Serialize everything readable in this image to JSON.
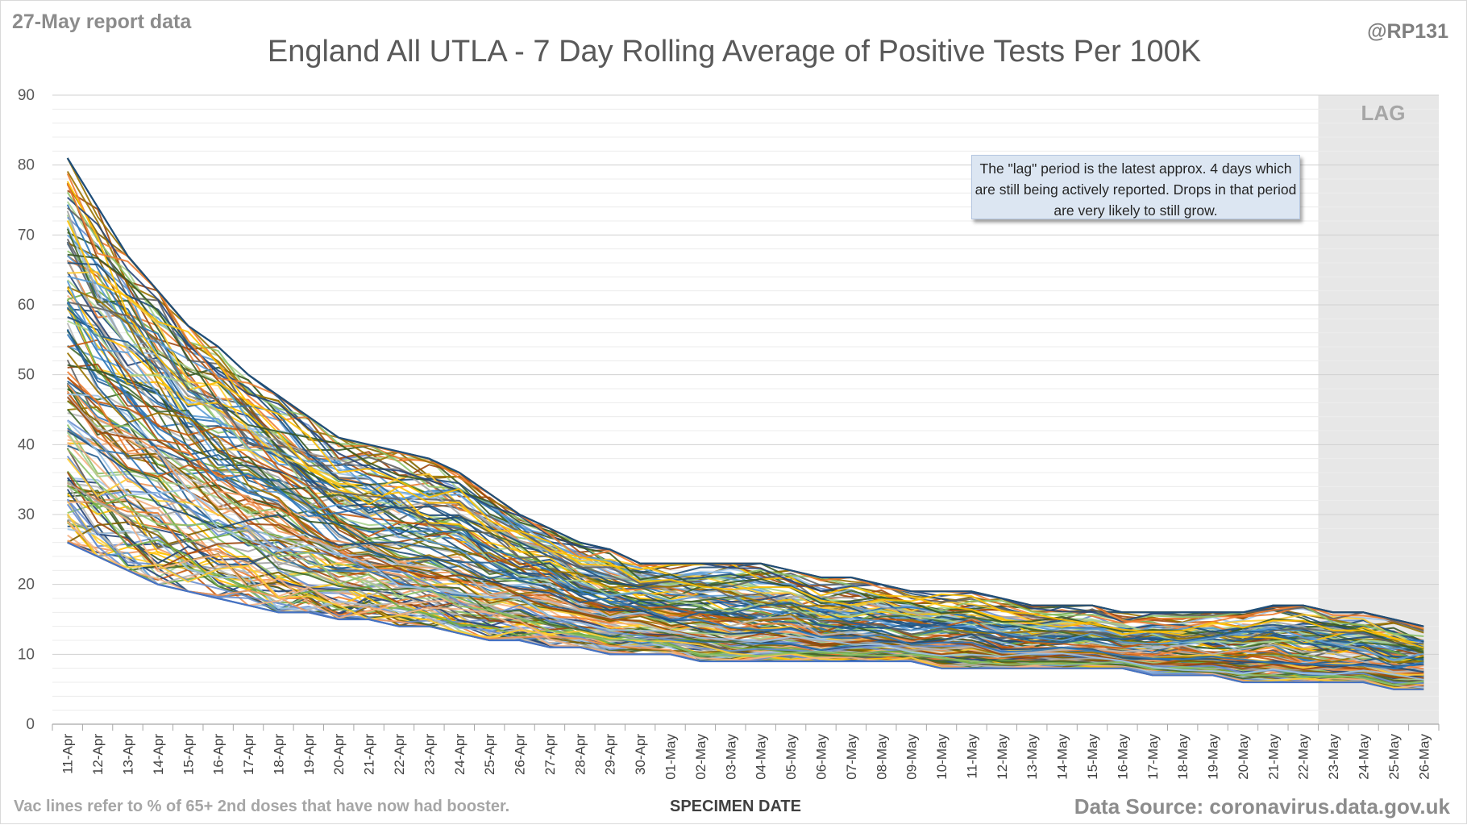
{
  "header": {
    "report_date": "27-May report data",
    "handle": "@RP131"
  },
  "footer": {
    "note": "Vac lines refer to % of 65+ 2nd doses that have now had booster.",
    "source": "Data Source: coronavirus.data.gov.uk"
  },
  "annotation": {
    "text": "The \"lag\" period is the latest approx. 4 days which are still being actively reported. Drops in that period are very likely to still grow."
  },
  "colors": {
    "palette": [
      "#1f4e79",
      "#2e75b6",
      "#9dc3e6",
      "#ed7d31",
      "#f4b183",
      "#ffc000",
      "#70ad47",
      "#a9d18e",
      "#375623",
      "#7f6000",
      "#c55a11",
      "#5b9bd5",
      "#a5a5a5",
      "#264478",
      "#636363",
      "#997300",
      "#43682b",
      "#698ed0",
      "#f1975a",
      "#b7b7b7",
      "#ffcd33",
      "#8cc168",
      "#255e91",
      "#9e480e"
    ],
    "lag_shade": "#e7e7e7",
    "grid": "#d9d9d9"
  },
  "chart_data": {
    "type": "line",
    "title": "England All UTLA - 7 Day Rolling Average of Positive Tests Per 100K",
    "xlabel": "SPECIMEN DATE",
    "ylabel": "",
    "ylim": [
      0,
      90
    ],
    "yticks": [
      0,
      10,
      20,
      30,
      40,
      50,
      60,
      70,
      80,
      90
    ],
    "x": [
      "11-Apr",
      "12-Apr",
      "13-Apr",
      "14-Apr",
      "15-Apr",
      "16-Apr",
      "17-Apr",
      "18-Apr",
      "19-Apr",
      "20-Apr",
      "21-Apr",
      "22-Apr",
      "23-Apr",
      "24-Apr",
      "25-Apr",
      "26-Apr",
      "27-Apr",
      "28-Apr",
      "29-Apr",
      "30-Apr",
      "01-May",
      "02-May",
      "03-May",
      "04-May",
      "05-May",
      "06-May",
      "07-May",
      "08-May",
      "09-May",
      "10-May",
      "11-May",
      "12-May",
      "13-May",
      "14-May",
      "15-May",
      "16-May",
      "17-May",
      "18-May",
      "19-May",
      "20-May",
      "21-May",
      "22-May",
      "23-May",
      "24-May",
      "25-May",
      "26-May"
    ],
    "lag_region": {
      "start": "23-May",
      "end": "26-May",
      "label": "LAG"
    },
    "grid": true,
    "legend": "none",
    "series_count": 150,
    "envelope": {
      "upper": [
        81,
        74,
        67,
        62,
        57,
        54,
        50,
        47,
        44,
        41,
        40,
        39,
        38,
        36,
        33,
        30,
        28,
        26,
        25,
        23,
        23,
        23,
        23,
        23,
        22,
        21,
        21,
        20,
        19,
        19,
        19,
        18,
        17,
        17,
        17,
        16,
        16,
        16,
        16,
        16,
        17,
        17,
        16,
        16,
        15,
        14
      ],
      "median": [
        50,
        46,
        43,
        40,
        37,
        35,
        33,
        31,
        29,
        27,
        26,
        25,
        24,
        23,
        21,
        20,
        19,
        17,
        16,
        16,
        15,
        15,
        14,
        14,
        14,
        13,
        13,
        13,
        12,
        12,
        12,
        11,
        11,
        11,
        11,
        10,
        10,
        10,
        10,
        10,
        10,
        9,
        9,
        9,
        8,
        8
      ],
      "lower": [
        26,
        24,
        22,
        20,
        19,
        18,
        17,
        16,
        16,
        15,
        15,
        14,
        14,
        13,
        12,
        12,
        11,
        11,
        10,
        10,
        10,
        9,
        9,
        9,
        9,
        9,
        9,
        9,
        9,
        8,
        8,
        8,
        8,
        8,
        8,
        8,
        7,
        7,
        7,
        6,
        6,
        6,
        6,
        6,
        5,
        5
      ]
    }
  }
}
